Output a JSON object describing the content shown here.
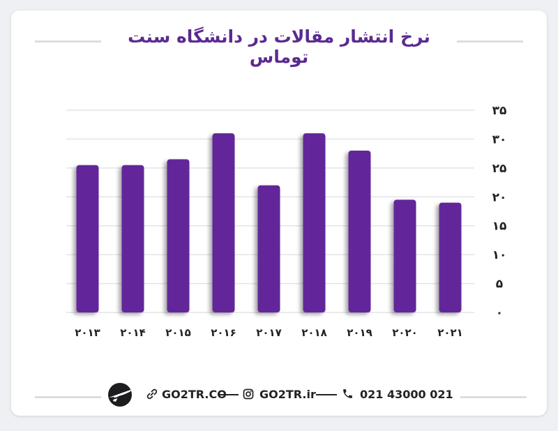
{
  "chart_data": {
    "type": "bar",
    "title": "نرخ انتشار مقالات در دانشگاه سنت توماس",
    "categories": [
      "۲۰۱۳",
      "۲۰۱۴",
      "۲۰۱۵",
      "۲۰۱۶",
      "۲۰۱۷",
      "۲۰۱۸",
      "۲۰۱۹",
      "۲۰۲۰",
      "۲۰۲۱"
    ],
    "values": [
      25.5,
      25.5,
      26.5,
      31,
      22,
      31,
      28,
      19.5,
      19
    ],
    "y_ticks": [
      "۰",
      "۵",
      "۱۰",
      "۱۵",
      "۲۰",
      "۲۵",
      "۳۰",
      "۳۵"
    ],
    "ylim": [
      0,
      35
    ],
    "grid": true,
    "bar_color": "#63279a"
  },
  "footer": {
    "website": "GO2TR.CO",
    "instagram": "GO2TR.ir",
    "phone": "021 43000 021",
    "logo_icon": "plane-logo-icon",
    "link_icon": "link-icon",
    "instagram_icon": "instagram-icon",
    "phone_icon": "phone-icon"
  }
}
